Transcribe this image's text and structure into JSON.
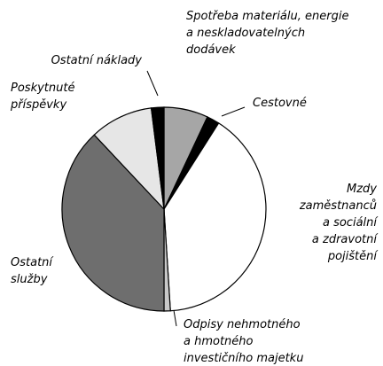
{
  "chart_data": {
    "type": "pie",
    "categories": [
      "Spotřeba materiálu, energie\na neskladovatelných\ndodávek",
      "Cestovné",
      "Mzdy\nzaměstnanců\na sociální\na zdravotní\npojištění",
      "Odpisy nehmotného\na hmotného\ninvestičního majetku",
      "Ostatní\nslužby",
      "Poskytnuté\npříspěvky",
      "Ostatní náklady"
    ],
    "values": [
      7,
      2,
      40,
      1,
      38,
      10,
      2
    ],
    "colors": [
      "#a6a6a6",
      "#000000",
      "#ffffff",
      "#c8c8c8",
      "#6e6e6e",
      "#e6e6e6",
      "#000000"
    ]
  }
}
